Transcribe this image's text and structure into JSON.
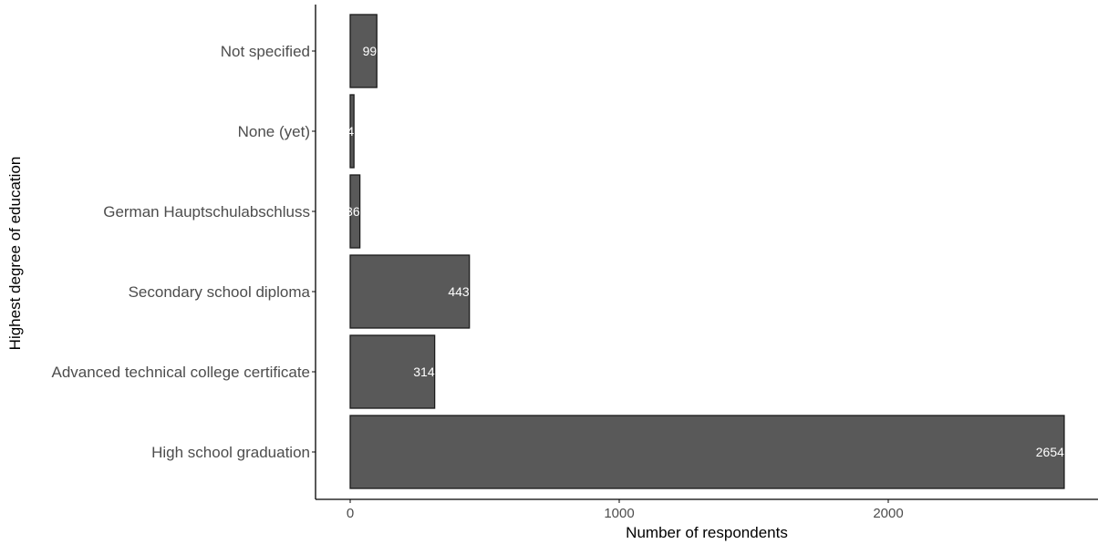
{
  "chart_data": {
    "type": "bar",
    "orientation": "horizontal",
    "categories": [
      "High school graduation",
      "Advanced technical college certificate",
      "Secondary school diploma",
      "German Hauptschulabschluss",
      "None (yet)",
      "Not specified"
    ],
    "values": [
      2654,
      314,
      443,
      36,
      14,
      99
    ],
    "data_labels": [
      "2654",
      "314",
      "443",
      "36",
      "14",
      "99"
    ],
    "xlabel": "Number of respondents",
    "ylabel": "Highest degree of education",
    "xlim": [
      0,
      2654
    ],
    "xticks": [
      0,
      1000,
      2000
    ],
    "xtick_labels": [
      "0",
      "1000",
      "2000"
    ],
    "grid": false,
    "colors": {
      "bar_fill": "#595959",
      "bar_stroke": "#1a1a1a",
      "axis": "#000000",
      "bar_label": "#ffffff"
    }
  }
}
